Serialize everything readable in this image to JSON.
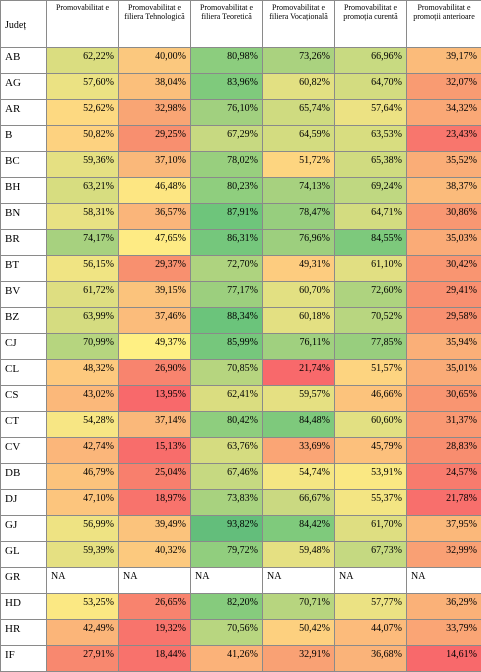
{
  "columns": [
    "Județ",
    "Promovabilitat e",
    "Promovabilitat e filiera Tehnologică",
    "Promovabilitat e filiera Teoretică",
    "Promovabilitat e filiera Vocațională",
    "Promovabilitat e promoția curentă",
    "Promovabilitat e promoții anterioare"
  ],
  "rows": [
    {
      "judet": "AB",
      "cells": [
        {
          "text": "62,22%",
          "color": "#dadd80"
        },
        {
          "text": "40,00%",
          "color": "#fbc87e"
        },
        {
          "text": "80,98%",
          "color": "#8ccd7e"
        },
        {
          "text": "73,26%",
          "color": "#aad27f"
        },
        {
          "text": "66,96%",
          "color": "#c8da81"
        },
        {
          "text": "39,17%",
          "color": "#fbbb7a"
        }
      ]
    },
    {
      "judet": "AG",
      "cells": [
        {
          "text": "57,60%",
          "color": "#ebe283"
        },
        {
          "text": "38,04%",
          "color": "#fbbf7b"
        },
        {
          "text": "83,96%",
          "color": "#7fca7c"
        },
        {
          "text": "60,82%",
          "color": "#e2e082"
        },
        {
          "text": "64,70%",
          "color": "#d3dc80"
        },
        {
          "text": "32,07%",
          "color": "#f99b72"
        }
      ]
    },
    {
      "judet": "AR",
      "cells": [
        {
          "text": "52,62%",
          "color": "#fdd981"
        },
        {
          "text": "32,98%",
          "color": "#f9a574"
        },
        {
          "text": "76,10%",
          "color": "#a1d07f"
        },
        {
          "text": "65,74%",
          "color": "#cfdb80"
        },
        {
          "text": "57,64%",
          "color": "#ece283"
        },
        {
          "text": "34,32%",
          "color": "#faa876"
        }
      ]
    },
    {
      "judet": "B",
      "cells": [
        {
          "text": "50,82%",
          "color": "#fdd280"
        },
        {
          "text": "29,25%",
          "color": "#f88f6f"
        },
        {
          "text": "67,29%",
          "color": "#c7d981"
        },
        {
          "text": "64,59%",
          "color": "#d3dc80"
        },
        {
          "text": "63,53%",
          "color": "#d8dd80"
        },
        {
          "text": "23,43%",
          "color": "#f8766d"
        }
      ]
    },
    {
      "judet": "BC",
      "cells": [
        {
          "text": "59,36%",
          "color": "#e5e082"
        },
        {
          "text": "37,10%",
          "color": "#fab87a"
        },
        {
          "text": "78,02%",
          "color": "#98cf7e"
        },
        {
          "text": "51,72%",
          "color": "#fdd580"
        },
        {
          "text": "65,38%",
          "color": "#d0db80"
        },
        {
          "text": "35,52%",
          "color": "#faad77"
        }
      ]
    },
    {
      "judet": "BH",
      "cells": [
        {
          "text": "63,21%",
          "color": "#d7dd80"
        },
        {
          "text": "46,48%",
          "color": "#fde682"
        },
        {
          "text": "80,23%",
          "color": "#8fce7e"
        },
        {
          "text": "74,13%",
          "color": "#a7d17f"
        },
        {
          "text": "69,24%",
          "color": "#bfd881"
        },
        {
          "text": "38,37%",
          "color": "#fbbb7b"
        }
      ]
    },
    {
      "judet": "BN",
      "cells": [
        {
          "text": "58,31%",
          "color": "#e8e183"
        },
        {
          "text": "36,57%",
          "color": "#fab57a"
        },
        {
          "text": "87,91%",
          "color": "#6ec57b"
        },
        {
          "text": "78,47%",
          "color": "#97ce7e"
        },
        {
          "text": "64,71%",
          "color": "#d3dc80"
        },
        {
          "text": "30,86%",
          "color": "#f99772"
        }
      ]
    },
    {
      "judet": "BR",
      "cells": [
        {
          "text": "74,17%",
          "color": "#a7d17f"
        },
        {
          "text": "47,65%",
          "color": "#feeb84"
        },
        {
          "text": "86,31%",
          "color": "#75c77c"
        },
        {
          "text": "76,96%",
          "color": "#9dcf7e"
        },
        {
          "text": "84,55%",
          "color": "#7dc97c"
        },
        {
          "text": "35,03%",
          "color": "#faab77"
        }
      ]
    },
    {
      "judet": "BT",
      "cells": [
        {
          "text": "56,15%",
          "color": "#f0e483"
        },
        {
          "text": "29,37%",
          "color": "#f8906f"
        },
        {
          "text": "72,70%",
          "color": "#aed37f"
        },
        {
          "text": "49,31%",
          "color": "#fdcc7f"
        },
        {
          "text": "61,10%",
          "color": "#e1df82"
        },
        {
          "text": "30,42%",
          "color": "#f99571"
        }
      ]
    },
    {
      "judet": "BV",
      "cells": [
        {
          "text": "61,72%",
          "color": "#dede81"
        },
        {
          "text": "39,15%",
          "color": "#fbc37c"
        },
        {
          "text": "77,17%",
          "color": "#9ccf7e"
        },
        {
          "text": "60,70%",
          "color": "#e2e082"
        },
        {
          "text": "72,60%",
          "color": "#aed37f"
        },
        {
          "text": "29,41%",
          "color": "#f88f70"
        }
      ]
    },
    {
      "judet": "BZ",
      "cells": [
        {
          "text": "63,99%",
          "color": "#d5dc80"
        },
        {
          "text": "37,46%",
          "color": "#fbbc7b"
        },
        {
          "text": "88,34%",
          "color": "#6bc47b"
        },
        {
          "text": "60,18%",
          "color": "#e3e082"
        },
        {
          "text": "70,52%",
          "color": "#b8d680"
        },
        {
          "text": "29,58%",
          "color": "#f89070"
        }
      ]
    },
    {
      "judet": "CJ",
      "cells": [
        {
          "text": "70,99%",
          "color": "#b6d57f"
        },
        {
          "text": "49,37%",
          "color": "#fff083"
        },
        {
          "text": "85,99%",
          "color": "#76c77c"
        },
        {
          "text": "76,11%",
          "color": "#a0d07f"
        },
        {
          "text": "77,85%",
          "color": "#98ce7e"
        },
        {
          "text": "35,94%",
          "color": "#faaf78"
        }
      ]
    },
    {
      "judet": "CL",
      "cells": [
        {
          "text": "48,32%",
          "color": "#fdc97e"
        },
        {
          "text": "26,90%",
          "color": "#f8846e"
        },
        {
          "text": "70,85%",
          "color": "#b6d57f"
        },
        {
          "text": "21,74%",
          "color": "#f8696b"
        },
        {
          "text": "51,57%",
          "color": "#fdd480"
        },
        {
          "text": "35,01%",
          "color": "#faab77"
        }
      ]
    },
    {
      "judet": "CS",
      "cells": [
        {
          "text": "43,02%",
          "color": "#fbb87a"
        },
        {
          "text": "13,95%",
          "color": "#f8696b"
        },
        {
          "text": "62,41%",
          "color": "#dadd80"
        },
        {
          "text": "59,57%",
          "color": "#e5e082"
        },
        {
          "text": "46,66%",
          "color": "#fcc37c"
        },
        {
          "text": "30,65%",
          "color": "#f99571"
        }
      ]
    },
    {
      "judet": "CT",
      "cells": [
        {
          "text": "54,28%",
          "color": "#f7e684"
        },
        {
          "text": "37,14%",
          "color": "#fab87a"
        },
        {
          "text": "80,42%",
          "color": "#8ece7e"
        },
        {
          "text": "84,48%",
          "color": "#7ec97c"
        },
        {
          "text": "60,60%",
          "color": "#e2e082"
        },
        {
          "text": "31,37%",
          "color": "#f99872"
        }
      ]
    },
    {
      "judet": "CV",
      "cells": [
        {
          "text": "42,74%",
          "color": "#fbb67a"
        },
        {
          "text": "15,13%",
          "color": "#f86d6b"
        },
        {
          "text": "63,76%",
          "color": "#d5dc80"
        },
        {
          "text": "33,69%",
          "color": "#faa575"
        },
        {
          "text": "45,79%",
          "color": "#fcc07c"
        },
        {
          "text": "28,83%",
          "color": "#f88d6f"
        }
      ]
    },
    {
      "judet": "DB",
      "cells": [
        {
          "text": "46,79%",
          "color": "#fcc37c"
        },
        {
          "text": "25,04%",
          "color": "#f87f6d"
        },
        {
          "text": "67,46%",
          "color": "#c6d981"
        },
        {
          "text": "54,74%",
          "color": "#f5e683"
        },
        {
          "text": "53,91%",
          "color": "#fae883"
        },
        {
          "text": "24,57%",
          "color": "#f87b6d"
        }
      ]
    },
    {
      "judet": "DJ",
      "cells": [
        {
          "text": "47,10%",
          "color": "#fcc57d"
        },
        {
          "text": "18,97%",
          "color": "#f8736c"
        },
        {
          "text": "73,83%",
          "color": "#a8d27f"
        },
        {
          "text": "66,67%",
          "color": "#cad981"
        },
        {
          "text": "55,37%",
          "color": "#f3e583"
        },
        {
          "text": "21,78%",
          "color": "#f86f6c"
        }
      ]
    },
    {
      "judet": "GJ",
      "cells": [
        {
          "text": "56,99%",
          "color": "#eee383"
        },
        {
          "text": "39,49%",
          "color": "#fbc37c"
        },
        {
          "text": "93,82%",
          "color": "#63be7b"
        },
        {
          "text": "84,42%",
          "color": "#7fca7c"
        },
        {
          "text": "61,70%",
          "color": "#dede81"
        },
        {
          "text": "37,95%",
          "color": "#fbb87a"
        }
      ]
    },
    {
      "judet": "GL",
      "cells": [
        {
          "text": "59,39%",
          "color": "#e5e082"
        },
        {
          "text": "40,32%",
          "color": "#fcc97e"
        },
        {
          "text": "79,72%",
          "color": "#91ce7e"
        },
        {
          "text": "59,48%",
          "color": "#e5e082"
        },
        {
          "text": "67,73%",
          "color": "#c5d981"
        },
        {
          "text": "32,99%",
          "color": "#f9a074"
        }
      ]
    },
    {
      "judet": "GR",
      "cells": [
        {
          "text": "NA",
          "color": "#ffffff",
          "na": true
        },
        {
          "text": "NA",
          "color": "#ffffff",
          "na": true
        },
        {
          "text": "NA",
          "color": "#ffffff",
          "na": true
        },
        {
          "text": "NA",
          "color": "#ffffff",
          "na": true
        },
        {
          "text": "NA",
          "color": "#ffffff",
          "na": true
        },
        {
          "text": "NA",
          "color": "#ffffff",
          "na": true
        }
      ]
    },
    {
      "judet": "HD",
      "cells": [
        {
          "text": "53,25%",
          "color": "#fbe883"
        },
        {
          "text": "26,65%",
          "color": "#f8836e"
        },
        {
          "text": "82,20%",
          "color": "#86cb7d"
        },
        {
          "text": "70,71%",
          "color": "#b7d57f"
        },
        {
          "text": "57,77%",
          "color": "#ebe283"
        },
        {
          "text": "36,29%",
          "color": "#fab178"
        }
      ]
    },
    {
      "judet": "HR",
      "cells": [
        {
          "text": "42,49%",
          "color": "#fbb579"
        },
        {
          "text": "19,32%",
          "color": "#f8746c"
        },
        {
          "text": "70,56%",
          "color": "#b8d680"
        },
        {
          "text": "50,42%",
          "color": "#fdd07f"
        },
        {
          "text": "44,07%",
          "color": "#fcbb7b"
        },
        {
          "text": "33,79%",
          "color": "#faa575"
        }
      ]
    },
    {
      "judet": "IF",
      "cells": [
        {
          "text": "27,91%",
          "color": "#f8886f"
        },
        {
          "text": "18,44%",
          "color": "#f8726c"
        },
        {
          "text": "41,26%",
          "color": "#fbb279"
        },
        {
          "text": "32,91%",
          "color": "#f9a174"
        },
        {
          "text": "36,68%",
          "color": "#fab379"
        },
        {
          "text": "14,61%",
          "color": "#f8696b"
        }
      ]
    }
  ]
}
